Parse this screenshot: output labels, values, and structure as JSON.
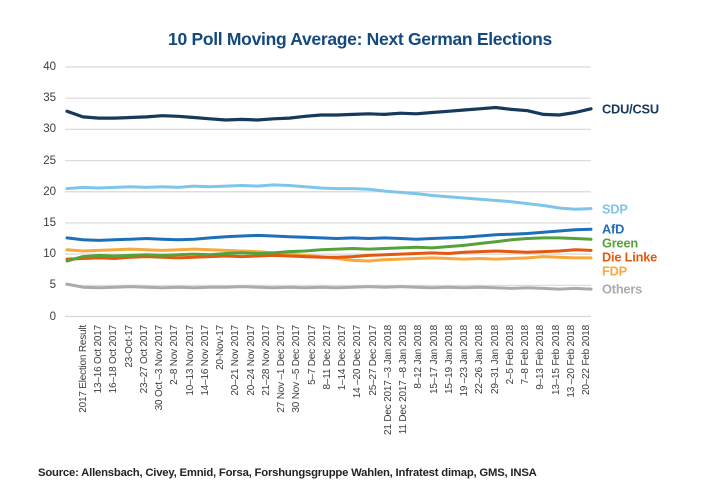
{
  "chart_data": {
    "type": "line",
    "title": "10 Poll Moving Average: Next German Elections",
    "source": "Source: Allensbach, Civey, Emnid, Forsa, Forshungsgruppe Wahlen, Infratest dimap, GMS, INSA",
    "ylim": [
      0,
      40
    ],
    "yticks": [
      0,
      5,
      10,
      15,
      20,
      25,
      30,
      35,
      40
    ],
    "grid": "horizontal-only",
    "gridline_color": "#d9d9d9",
    "legend_position": "right-of-line-ends",
    "title_color": "#14497f",
    "x_labels": [
      "2017 Election Result",
      "13–16 Oct 2017",
      "16–18 Oct 2017",
      "23-Oct-17",
      "23–27 Oct 2017",
      "30 Oct –3 Nov 2017",
      "2–8 Nov 2017",
      "10–13 Nov 2017",
      "14–16 Nov 2017",
      "20-Nov-17",
      "20–21 Nov 2017",
      "20–24 Nov 2017",
      "21–28 Nov 2017",
      "27 Nov –1 Dec 2017",
      "30 Nov –5 Dec 2017",
      "5–7 Dec 2017",
      "8–11 Dec 2017",
      "1–14 Dec 2017",
      "14 –20 Dec 2017",
      "25–27 Dec 2017",
      "21 Dec 2017 –3 Jan 2018",
      "11 Dec 2017 –8 Jan 2018",
      "8–12 Jan 2018",
      "15–17 Jan 2018",
      "15–19 Jan 2018",
      "19 –23 Jan 2018",
      "22–26 Jan 2018",
      "29–31 Jan 2018",
      "2–5 Feb 2018",
      "7–8 Feb 2018",
      "9–13 Feb 2018",
      "13–15 Feb 2018",
      "13 –20 Feb 2018",
      "20–22 Feb 2018"
    ],
    "series": [
      {
        "name": "CDU/CSU",
        "color": "#16395c",
        "values": [
          32.9,
          32.0,
          31.8,
          31.8,
          31.9,
          32.0,
          32.2,
          32.1,
          31.9,
          31.7,
          31.5,
          31.6,
          31.5,
          31.7,
          31.8,
          32.1,
          32.3,
          32.3,
          32.4,
          32.5,
          32.4,
          32.6,
          32.5,
          32.7,
          32.9,
          33.1,
          33.3,
          33.5,
          33.2,
          33.0,
          32.4,
          32.3,
          32.7,
          33.3
        ]
      },
      {
        "name": "SDP",
        "color": "#7ec5ea",
        "values": [
          20.5,
          20.7,
          20.6,
          20.7,
          20.8,
          20.7,
          20.8,
          20.7,
          20.9,
          20.8,
          20.9,
          21.0,
          20.9,
          21.1,
          21.0,
          20.8,
          20.6,
          20.5,
          20.5,
          20.4,
          20.1,
          19.9,
          19.7,
          19.4,
          19.2,
          19.0,
          18.8,
          18.6,
          18.4,
          18.1,
          17.8,
          17.4,
          17.2,
          17.3
        ]
      },
      {
        "name": "AfD",
        "color": "#1e6fb7",
        "values": [
          12.6,
          12.3,
          12.2,
          12.3,
          12.4,
          12.5,
          12.4,
          12.3,
          12.4,
          12.6,
          12.8,
          12.9,
          13.0,
          12.9,
          12.8,
          12.7,
          12.6,
          12.5,
          12.6,
          12.5,
          12.6,
          12.5,
          12.4,
          12.5,
          12.6,
          12.7,
          12.9,
          13.1,
          13.2,
          13.3,
          13.5,
          13.7,
          13.9,
          14.0
        ]
      },
      {
        "name": "Green",
        "color": "#56a23a",
        "values": [
          8.9,
          9.6,
          9.8,
          9.7,
          9.8,
          9.9,
          9.8,
          9.9,
          10.0,
          9.9,
          10.1,
          10.2,
          10.1,
          10.2,
          10.4,
          10.5,
          10.7,
          10.8,
          10.9,
          10.8,
          10.9,
          11.0,
          11.1,
          11.0,
          11.2,
          11.4,
          11.7,
          12.0,
          12.3,
          12.5,
          12.6,
          12.6,
          12.5,
          12.4
        ]
      },
      {
        "name": "Die Linke",
        "color": "#e4590f",
        "values": [
          9.2,
          9.3,
          9.4,
          9.3,
          9.5,
          9.6,
          9.5,
          9.4,
          9.5,
          9.6,
          9.7,
          9.6,
          9.7,
          9.8,
          9.7,
          9.6,
          9.5,
          9.5,
          9.6,
          9.8,
          9.9,
          10.0,
          10.1,
          10.2,
          10.1,
          10.3,
          10.4,
          10.5,
          10.4,
          10.3,
          10.4,
          10.5,
          10.7,
          10.6
        ]
      },
      {
        "name": "FDP",
        "color": "#f9a93b",
        "values": [
          10.7,
          10.5,
          10.6,
          10.7,
          10.8,
          10.7,
          10.6,
          10.7,
          10.8,
          10.7,
          10.6,
          10.5,
          10.4,
          10.2,
          10.0,
          9.8,
          9.6,
          9.3,
          9.0,
          8.9,
          9.1,
          9.2,
          9.3,
          9.4,
          9.3,
          9.2,
          9.3,
          9.2,
          9.3,
          9.4,
          9.6,
          9.5,
          9.4,
          9.4
        ]
      },
      {
        "name": "Others",
        "color": "#a9abad",
        "values": [
          5.2,
          4.7,
          4.6,
          4.7,
          4.8,
          4.7,
          4.6,
          4.7,
          4.6,
          4.7,
          4.7,
          4.8,
          4.7,
          4.6,
          4.7,
          4.6,
          4.7,
          4.6,
          4.7,
          4.8,
          4.7,
          4.8,
          4.7,
          4.6,
          4.7,
          4.6,
          4.7,
          4.6,
          4.5,
          4.6,
          4.5,
          4.4,
          4.5,
          4.4
        ]
      }
    ]
  }
}
